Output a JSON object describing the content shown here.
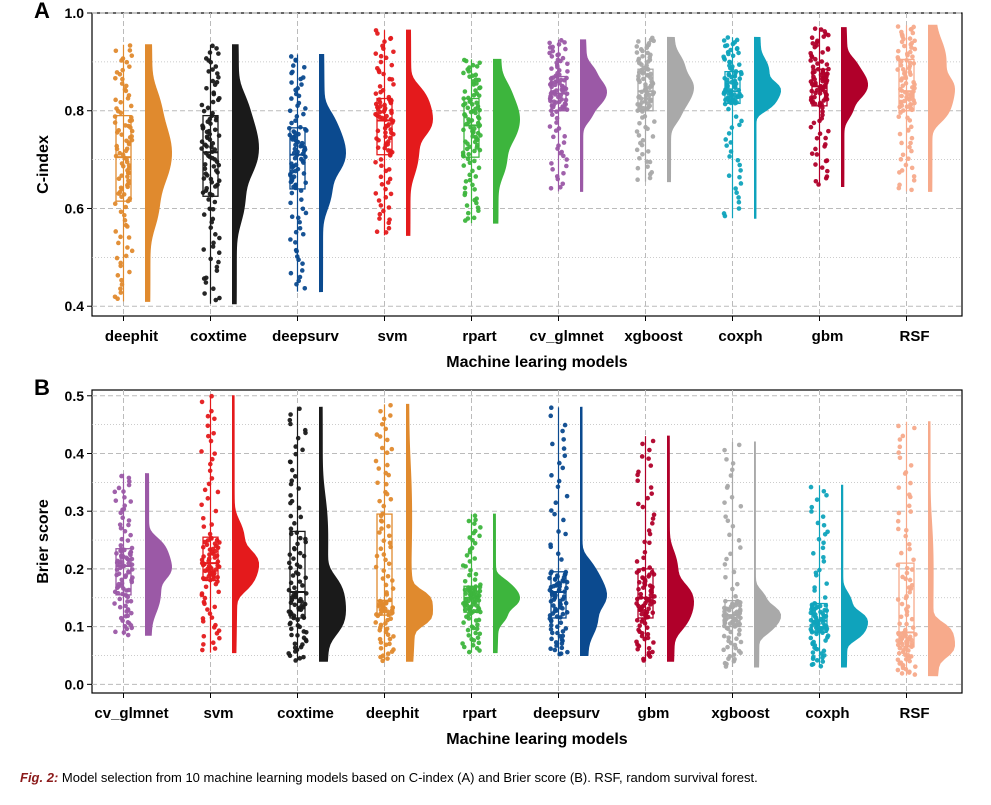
{
  "chart_data": [
    {
      "panel_label": "A",
      "type": "raincloud",
      "xlabel": "Machine learing models",
      "ylabel": "C-index",
      "ylim": [
        0.38,
        1.0
      ],
      "yticks": [
        "0.4",
        "0.6",
        "0.8",
        "1.0"
      ],
      "grid": true,
      "categories": [
        "deephit",
        "coxtime",
        "deepsurv",
        "svm",
        "rpart",
        "cv_glmnet",
        "xgboost",
        "coxph",
        "gbm",
        "RSF"
      ],
      "colors": [
        "#E08A2E",
        "#1A1A1A",
        "#0B4A8F",
        "#E41A1C",
        "#3DB53D",
        "#9B59A6",
        "#A9A9A9",
        "#0FA3BC",
        "#B0002A",
        "#F7AA8B"
      ],
      "series": [
        {
          "category": "deephit",
          "min": 0.41,
          "q1": 0.615,
          "median": 0.705,
          "q3": 0.79,
          "max": 0.935
        },
        {
          "category": "coxtime",
          "min": 0.405,
          "q1": 0.625,
          "median": 0.715,
          "q3": 0.79,
          "max": 0.935
        },
        {
          "category": "deepsurv",
          "min": 0.43,
          "q1": 0.64,
          "median": 0.71,
          "q3": 0.765,
          "max": 0.915
        },
        {
          "category": "svm",
          "min": 0.545,
          "q1": 0.71,
          "median": 0.78,
          "q3": 0.825,
          "max": 0.965
        },
        {
          "category": "rpart",
          "min": 0.57,
          "q1": 0.705,
          "median": 0.77,
          "q3": 0.825,
          "max": 0.905
        },
        {
          "category": "cv_glmnet",
          "min": 0.635,
          "q1": 0.8,
          "median": 0.835,
          "q3": 0.87,
          "max": 0.945
        },
        {
          "category": "xgboost",
          "min": 0.655,
          "q1": 0.8,
          "median": 0.84,
          "q3": 0.885,
          "max": 0.95
        },
        {
          "category": "coxph",
          "min": 0.58,
          "q1": 0.815,
          "median": 0.84,
          "q3": 0.88,
          "max": 0.95
        },
        {
          "category": "gbm",
          "min": 0.645,
          "q1": 0.81,
          "median": 0.85,
          "q3": 0.885,
          "max": 0.97
        },
        {
          "category": "RSF",
          "min": 0.635,
          "q1": 0.8,
          "median": 0.84,
          "q3": 0.905,
          "max": 0.975
        }
      ]
    },
    {
      "panel_label": "B",
      "type": "raincloud",
      "xlabel": "Machine learing models",
      "ylabel": "Brier score",
      "ylim": [
        -0.015,
        0.51
      ],
      "yticks": [
        "0.0",
        "0.1",
        "0.2",
        "0.3",
        "0.4",
        "0.5"
      ],
      "grid": true,
      "categories": [
        "cv_glmnet",
        "svm",
        "coxtime",
        "deephit",
        "rpart",
        "deepsurv",
        "gbm",
        "xgboost",
        "coxph",
        "RSF"
      ],
      "colors": [
        "#9B59A6",
        "#E41A1C",
        "#1A1A1A",
        "#E08A2E",
        "#3DB53D",
        "#0B4A8F",
        "#B0002A",
        "#A9A9A9",
        "#0FA3BC",
        "#F7AA8B"
      ],
      "series": [
        {
          "category": "cv_glmnet",
          "min": 0.085,
          "q1": 0.155,
          "median": 0.205,
          "q3": 0.235,
          "max": 0.365
        },
        {
          "category": "svm",
          "min": 0.055,
          "q1": 0.18,
          "median": 0.21,
          "q3": 0.255,
          "max": 0.5
        },
        {
          "category": "coxtime",
          "min": 0.04,
          "q1": 0.115,
          "median": 0.16,
          "q3": 0.265,
          "max": 0.48
        },
        {
          "category": "deephit",
          "min": 0.04,
          "q1": 0.12,
          "median": 0.145,
          "q3": 0.295,
          "max": 0.485
        },
        {
          "category": "rpart",
          "min": 0.055,
          "q1": 0.125,
          "median": 0.15,
          "q3": 0.17,
          "max": 0.295
        },
        {
          "category": "deepsurv",
          "min": 0.05,
          "q1": 0.115,
          "median": 0.16,
          "q3": 0.195,
          "max": 0.48
        },
        {
          "category": "gbm",
          "min": 0.04,
          "q1": 0.115,
          "median": 0.15,
          "q3": 0.2,
          "max": 0.43
        },
        {
          "category": "xgboost",
          "min": 0.03,
          "q1": 0.1,
          "median": 0.12,
          "q3": 0.145,
          "max": 0.42
        },
        {
          "category": "coxph",
          "min": 0.03,
          "q1": 0.09,
          "median": 0.11,
          "q3": 0.14,
          "max": 0.345
        },
        {
          "category": "RSF",
          "min": 0.015,
          "q1": 0.065,
          "median": 0.09,
          "q3": 0.21,
          "max": 0.455
        }
      ]
    }
  ],
  "caption": {
    "fig_label": "Fig. 2:",
    "text": "Model selection from 10 machine learning models based on C-index (A) and Brier score (B). RSF, random survival forest."
  }
}
